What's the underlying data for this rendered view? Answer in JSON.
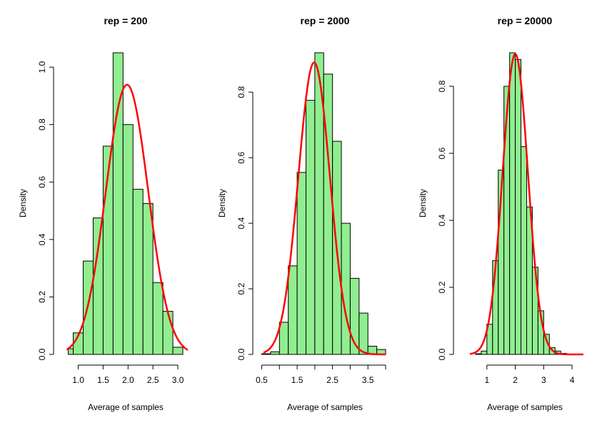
{
  "figure": {
    "bar_fill": "#90EE90",
    "bar_stroke": "#000000",
    "curve_color": "#FF0000"
  },
  "chart_data": [
    {
      "type": "bar",
      "title": "rep = 200",
      "xlabel": "Average of samples",
      "ylabel": "Density",
      "xlim": [
        0.72,
        3.2
      ],
      "ylim": [
        0,
        1.05
      ],
      "xticks": [
        1.0,
        1.5,
        2.0,
        2.5,
        3.0
      ],
      "xtick_labels": [
        "1.0",
        "1.5",
        "2.0",
        "2.5",
        "3.0"
      ],
      "yticks": [
        0.0,
        0.2,
        0.4,
        0.6,
        0.8,
        1.0
      ],
      "ytick_labels": [
        "0.0",
        "0.2",
        "0.4",
        "0.6",
        "0.8",
        "1.0"
      ],
      "bins": [
        [
          0.8,
          0.9
        ],
        [
          0.9,
          1.1
        ],
        [
          1.1,
          1.3
        ],
        [
          1.3,
          1.5
        ],
        [
          1.5,
          1.7
        ],
        [
          1.7,
          1.9
        ],
        [
          1.9,
          2.1
        ],
        [
          2.1,
          2.3
        ],
        [
          2.3,
          2.5
        ],
        [
          2.5,
          2.7
        ],
        [
          2.7,
          2.9
        ],
        [
          2.9,
          3.1
        ],
        [
          3.1,
          3.2
        ]
      ],
      "values": [
        0.02,
        0.075,
        0.325,
        0.475,
        0.725,
        1.05,
        0.8,
        0.575,
        0.525,
        0.25,
        0.15,
        0.025,
        0.0
      ],
      "curve": {
        "type": "normal",
        "mean": 1.98,
        "sd": 0.425,
        "x_range": [
          0.77,
          3.2
        ]
      }
    },
    {
      "type": "bar",
      "title": "rep = 2000",
      "xlabel": "Average of samples",
      "ylabel": "Density",
      "xlim": [
        0.55,
        4.0
      ],
      "ylim": [
        0,
        0.92
      ],
      "xticks": [
        0.5,
        1.0,
        1.5,
        2.0,
        2.5,
        3.0,
        3.5,
        4.0
      ],
      "xtick_labels": [
        "0.5",
        "",
        "1.5",
        "",
        "2.5",
        "",
        "3.5",
        ""
      ],
      "yticks": [
        0.0,
        0.2,
        0.4,
        0.6,
        0.8
      ],
      "ytick_labels": [
        "0.0",
        "0.2",
        "0.4",
        "0.6",
        "0.8"
      ],
      "bins": [
        [
          0.5,
          0.75
        ],
        [
          0.75,
          1.0
        ],
        [
          1.0,
          1.25
        ],
        [
          1.25,
          1.5
        ],
        [
          1.5,
          1.75
        ],
        [
          1.75,
          2.0
        ],
        [
          2.0,
          2.25
        ],
        [
          2.25,
          2.5
        ],
        [
          2.5,
          2.75
        ],
        [
          2.75,
          3.0
        ],
        [
          3.0,
          3.25
        ],
        [
          3.25,
          3.5
        ],
        [
          3.5,
          3.75
        ],
        [
          3.75,
          4.0
        ]
      ],
      "values": [
        0.002,
        0.008,
        0.098,
        0.27,
        0.555,
        0.775,
        0.92,
        0.855,
        0.65,
        0.4,
        0.232,
        0.126,
        0.025,
        0.015
      ],
      "curve": {
        "type": "normal",
        "mean": 1.98,
        "sd": 0.448,
        "x_range": [
          0.55,
          4.0
        ]
      }
    },
    {
      "type": "bar",
      "title": "rep = 20000",
      "xlabel": "Average of samples",
      "ylabel": "Density",
      "xlim": [
        0.2,
        4.5
      ],
      "ylim": [
        0,
        0.9
      ],
      "xticks": [
        1,
        2,
        3,
        4
      ],
      "xtick_labels": [
        "1",
        "2",
        "3",
        "4"
      ],
      "yticks": [
        0.0,
        0.2,
        0.4,
        0.6,
        0.8
      ],
      "ytick_labels": [
        "0.0",
        "0.2",
        "0.4",
        "0.6",
        "0.8"
      ],
      "bins": [
        [
          0.6,
          0.8
        ],
        [
          0.8,
          1.0
        ],
        [
          1.0,
          1.2
        ],
        [
          1.2,
          1.4
        ],
        [
          1.4,
          1.6
        ],
        [
          1.6,
          1.8
        ],
        [
          1.8,
          2.0
        ],
        [
          2.0,
          2.2
        ],
        [
          2.2,
          2.4
        ],
        [
          2.4,
          2.6
        ],
        [
          2.6,
          2.8
        ],
        [
          2.8,
          3.0
        ],
        [
          3.0,
          3.2
        ],
        [
          3.2,
          3.4
        ],
        [
          3.4,
          3.6
        ],
        [
          3.6,
          3.8
        ],
        [
          3.8,
          4.0
        ]
      ],
      "values": [
        0.002,
        0.01,
        0.09,
        0.28,
        0.55,
        0.8,
        0.9,
        0.88,
        0.62,
        0.44,
        0.26,
        0.13,
        0.06,
        0.02,
        0.01,
        0.003,
        0.001
      ],
      "curve": {
        "type": "normal",
        "mean": 2.0,
        "sd": 0.445,
        "x_range": [
          0.4,
          4.4
        ]
      }
    }
  ]
}
